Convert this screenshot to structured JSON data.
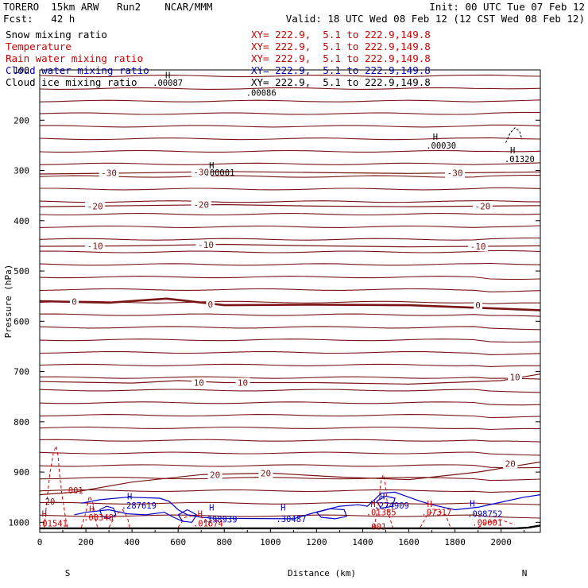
{
  "header": {
    "line1_left": "TORERO  15km ARW   Run2    NCAR/MMM",
    "line1_right": "Init: 00 UTC Tue 07 Feb 12",
    "line2_left": "Fcst:   42 h",
    "line2_right": "Valid: 18 UTC Wed 08 Feb 12 (12 CST Wed 08 Feb 12)"
  },
  "fields": [
    {
      "name": "Snow mixing ratio",
      "xy": "XY= 222.9,  5.1 to 222.9,149.8",
      "color": "#000000"
    },
    {
      "name": "Temperature",
      "xy": "XY= 222.9,  5.1 to 222.9,149.8",
      "color": "#cc0000"
    },
    {
      "name": "Rain water mixing ratio",
      "xy": "XY= 222.9,  5.1 to 222.9,149.8",
      "color": "#cc0000"
    },
    {
      "name": "Cloud water mixing ratio",
      "xy": "XY= 222.9,  5.1 to 222.9,149.8",
      "color": "#0000cc"
    },
    {
      "name": "Cloud ice mixing ratio",
      "xy": "XY= 222.9,  5.1 to 222.9,149.8",
      "color": "#000000"
    }
  ],
  "colors": {
    "temperature": "#7a1414",
    "rain": "#dd0000",
    "cloud_water": "#0000cc",
    "text_black": "#000000",
    "label_red": "#cc0000"
  },
  "chart_data": {
    "type": "contour",
    "xlabel": "Distance (km)",
    "ylabel": "Pressure (hPa)",
    "xlim": [
      0,
      2170
    ],
    "ylim": [
      100,
      1020
    ],
    "x_ticks": [
      "0",
      "200",
      "400",
      "600",
      "800",
      "1000",
      "1200",
      "1400",
      "1600",
      "1800",
      "2000"
    ],
    "x_tick_values": [
      0,
      200,
      400,
      600,
      800,
      1000,
      1200,
      1400,
      1600,
      1800,
      2000
    ],
    "y_ticks": [
      "100",
      "200",
      "300",
      "400",
      "500",
      "600",
      "700",
      "800",
      "900",
      "1000"
    ],
    "y_tick_values": [
      100,
      200,
      300,
      400,
      500,
      600,
      700,
      800,
      900,
      1000
    ],
    "endpoints": {
      "left": "S",
      "right": "N"
    },
    "temperature_isotherms": [
      {
        "label": "-30",
        "points": [
          [
            0,
            307
          ],
          [
            400,
            305
          ],
          [
            800,
            302
          ],
          [
            1200,
            304
          ],
          [
            1600,
            306
          ],
          [
            2170,
            303
          ]
        ]
      },
      {
        "label": "-20",
        "points": [
          [
            0,
            372
          ],
          [
            400,
            370
          ],
          [
            800,
            368
          ],
          [
            1200,
            371
          ],
          [
            1600,
            372
          ],
          [
            2170,
            370
          ]
        ]
      },
      {
        "label": "-10",
        "points": [
          [
            0,
            451
          ],
          [
            400,
            450
          ],
          [
            800,
            447
          ],
          [
            1200,
            450
          ],
          [
            1600,
            452
          ],
          [
            2170,
            450
          ]
        ]
      },
      {
        "label": "0",
        "points": [
          [
            0,
            560
          ],
          [
            300,
            563
          ],
          [
            550,
            555
          ],
          [
            800,
            568
          ],
          [
            1200,
            567
          ],
          [
            1600,
            568
          ],
          [
            2170,
            578
          ]
        ]
      },
      {
        "label": "10",
        "points": [
          [
            0,
            720
          ],
          [
            400,
            723
          ],
          [
            600,
            718
          ],
          [
            800,
            722
          ],
          [
            1200,
            722
          ],
          [
            1600,
            725
          ],
          [
            2000,
            718
          ],
          [
            2170,
            705
          ]
        ]
      },
      {
        "label": "20",
        "points": [
          [
            0,
            945
          ],
          [
            150,
            940
          ],
          [
            400,
            920
          ],
          [
            700,
            905
          ],
          [
            1000,
            902
          ],
          [
            1300,
            910
          ],
          [
            1600,
            915
          ],
          [
            1900,
            900
          ],
          [
            2170,
            880
          ]
        ]
      }
    ],
    "temperature_labels": [
      {
        "text": "-30",
        "x": 300,
        "p": 305
      },
      {
        "text": "-30",
        "x": 700,
        "p": 303
      },
      {
        "text": "-30",
        "x": 1800,
        "p": 305
      },
      {
        "text": "-20",
        "x": 240,
        "p": 371
      },
      {
        "text": "-20",
        "x": 700,
        "p": 368
      },
      {
        "text": "-20",
        "x": 1920,
        "p": 371
      },
      {
        "text": "-10",
        "x": 240,
        "p": 450
      },
      {
        "text": "-10",
        "x": 720,
        "p": 448
      },
      {
        "text": "-10",
        "x": 1900,
        "p": 451
      },
      {
        "text": "0",
        "x": 150,
        "p": 561
      },
      {
        "text": "0",
        "x": 740,
        "p": 566
      },
      {
        "text": "0",
        "x": 1900,
        "p": 568
      },
      {
        "text": "10",
        "x": 690,
        "p": 722
      },
      {
        "text": "10",
        "x": 880,
        "p": 722
      },
      {
        "text": "10",
        "x": 2060,
        "p": 711
      },
      {
        "text": "20",
        "x": 760,
        "p": 905
      },
      {
        "text": "20",
        "x": 980,
        "p": 902
      },
      {
        "text": "20",
        "x": 2040,
        "p": 883
      }
    ],
    "annotations": [
      {
        "text": "H",
        "x": 555,
        "p": 110,
        "color": "#000000"
      },
      {
        "text": ".00087",
        "x": 555,
        "p": 125,
        "color": "#000000"
      },
      {
        "text": ".00086",
        "x": 960,
        "p": 145,
        "color": "#000000"
      },
      {
        "text": "H",
        "x": 1715,
        "p": 233,
        "color": "#000000"
      },
      {
        "text": ".00030",
        "x": 1740,
        "p": 250,
        "color": "#000000"
      },
      {
        "text": "H",
        "x": 2050,
        "p": 260,
        "color": "#000000"
      },
      {
        "text": ".01320",
        "x": 2080,
        "p": 277,
        "color": "#000000"
      },
      {
        "text": "H",
        "x": 745,
        "p": 290,
        "color": "#000000"
      },
      {
        "text": ".00001",
        "x": 780,
        "p": 304,
        "color": "#000000"
      },
      {
        "text": "H",
        "x": 390,
        "p": 948,
        "color": "#0000cc"
      },
      {
        "text": ".287619",
        "x": 430,
        "p": 966,
        "color": "#0000cc"
      },
      {
        "text": "H",
        "x": 745,
        "p": 970,
        "color": "#0000cc"
      },
      {
        "text": ".398939",
        "x": 780,
        "p": 994,
        "color": "#0000cc"
      },
      {
        "text": "H",
        "x": 1055,
        "p": 970,
        "color": "#0000cc"
      },
      {
        "text": ".30487",
        "x": 1090,
        "p": 993,
        "color": "#0000cc"
      },
      {
        "text": "H",
        "x": 1485,
        "p": 948,
        "color": "#0000cc"
      },
      {
        "text": ".274909",
        "x": 1525,
        "p": 966,
        "color": "#0000cc"
      },
      {
        "text": "H",
        "x": 1875,
        "p": 962,
        "color": "#0000cc"
      },
      {
        "text": ".098752",
        "x": 1930,
        "p": 983,
        "color": "#0000cc"
      },
      {
        "text": "H",
        "x": 20,
        "p": 983,
        "color": "#cc0000"
      },
      {
        "text": ".01541",
        "x": 55,
        "p": 1002,
        "color": "#cc0000"
      },
      {
        "text": ".001",
        "x": 145,
        "p": 936,
        "color": "#cc0000"
      },
      {
        "text": "H",
        "x": 225,
        "p": 973,
        "color": "#cc0000"
      },
      {
        "text": ".00348",
        "x": 255,
        "p": 990,
        "color": "#cc0000"
      },
      {
        "text": "H",
        "x": 695,
        "p": 983,
        "color": "#cc0000"
      },
      {
        "text": ".01674",
        "x": 730,
        "p": 1002,
        "color": "#cc0000"
      },
      {
        "text": "H",
        "x": 1445,
        "p": 963,
        "color": "#cc0000"
      },
      {
        "text": ".01385",
        "x": 1480,
        "p": 980,
        "color": "#cc0000"
      },
      {
        "text": "H",
        "x": 1690,
        "p": 963,
        "color": "#cc0000"
      },
      {
        "text": ".07317",
        "x": 1720,
        "p": 980,
        "color": "#cc0000"
      },
      {
        "text": ".00001",
        "x": 1940,
        "p": 1000,
        "color": "#cc0000"
      },
      {
        "text": "001",
        "x": 1470,
        "p": 1008,
        "color": "#cc0000"
      },
      {
        "text": "20",
        "x": 45,
        "p": 958,
        "color": "#7a1414"
      }
    ]
  }
}
